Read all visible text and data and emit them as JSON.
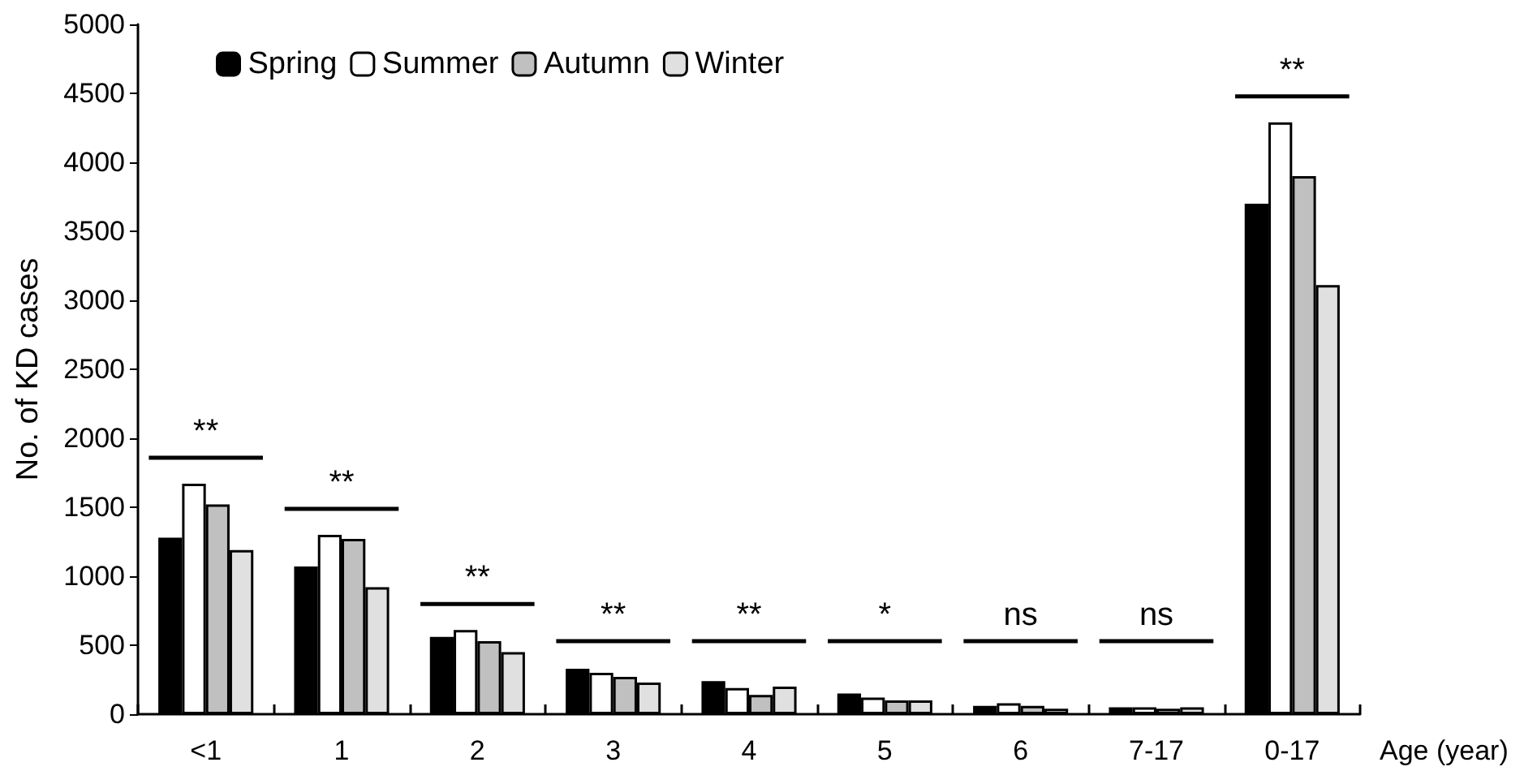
{
  "chart_data": {
    "type": "bar",
    "xlabel": "Age (year)",
    "ylabel": "No. of KD cases",
    "categories": [
      "<1",
      "1",
      "2",
      "3",
      "4",
      "5",
      "6",
      "7-17",
      "0-17"
    ],
    "series": [
      {
        "name": "Spring",
        "color": "#000000",
        "values": [
          1280,
          1070,
          560,
          330,
          240,
          150,
          60,
          50,
          3700
        ]
      },
      {
        "name": "Summer",
        "color": "#ffffff",
        "values": [
          1670,
          1300,
          610,
          300,
          190,
          120,
          80,
          50,
          4290
        ]
      },
      {
        "name": "Autumn",
        "color": "#c0c0c0",
        "values": [
          1520,
          1270,
          530,
          270,
          140,
          100,
          60,
          40,
          3900
        ]
      },
      {
        "name": "Winter",
        "color": "#e0e0e0",
        "values": [
          1190,
          920,
          450,
          230,
          200,
          100,
          40,
          50,
          3110
        ]
      }
    ],
    "ylim": [
      0,
      5000
    ],
    "yticks": [
      0,
      500,
      1000,
      1500,
      2000,
      2500,
      3000,
      3500,
      4000,
      4500,
      5000
    ],
    "grid": false,
    "legend": "top left",
    "annotations": [
      "**",
      "**",
      "**",
      "**",
      "**",
      "*",
      "ns",
      "ns",
      "**"
    ]
  }
}
